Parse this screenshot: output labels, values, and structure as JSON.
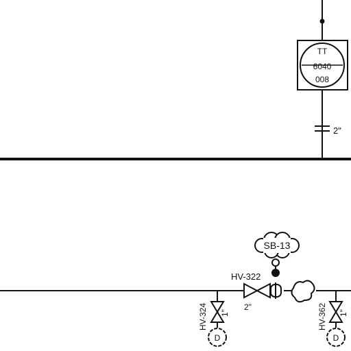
{
  "instrument": {
    "type": "TT",
    "number": "6040",
    "suffix": "008"
  },
  "line_size_top": "2\"",
  "cloud_tag": "SB-13",
  "valves": {
    "main": {
      "tag": "HV-322",
      "size": "2\""
    },
    "left_drain": {
      "tag": "HV-324",
      "size": "1\"",
      "drain_symbol": "D"
    },
    "right_drain": {
      "tag": "HV-362",
      "size": "1\"",
      "drain_symbol": "D"
    }
  }
}
